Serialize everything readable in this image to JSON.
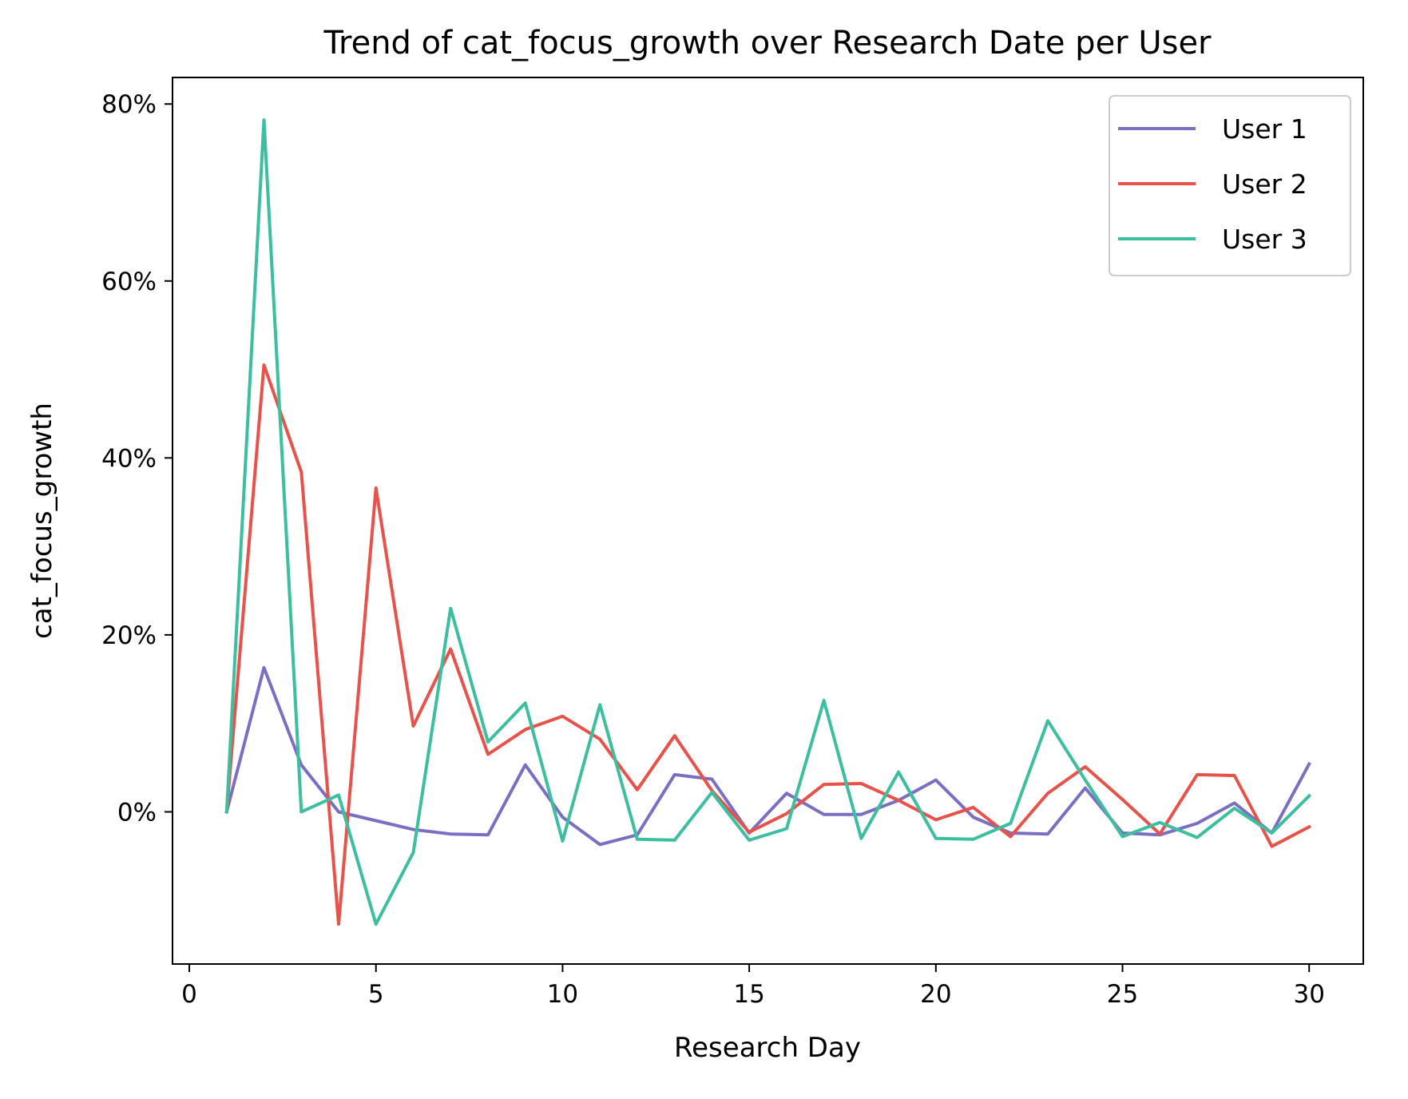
{
  "chart_data": {
    "type": "line",
    "title": "Trend of cat_focus_growth over Research Date per User",
    "xlabel": "Research Day",
    "ylabel": "cat_focus_growth",
    "xlim": [
      -0.45,
      31.45
    ],
    "ylim": [
      -17.2,
      83
    ],
    "x_ticks": [
      0,
      5,
      10,
      15,
      20,
      25,
      30
    ],
    "x_tick_labels": [
      "0",
      "5",
      "10",
      "15",
      "20",
      "25",
      "30"
    ],
    "y_ticks": [
      0,
      20,
      40,
      60,
      80
    ],
    "y_tick_labels": [
      "0%",
      "20%",
      "40%",
      "60%",
      "80%"
    ],
    "grid": false,
    "legend_position": "top-right",
    "x": [
      1,
      2,
      3,
      4,
      5,
      6,
      7,
      8,
      9,
      10,
      11,
      12,
      13,
      14,
      15,
      16,
      17,
      18,
      19,
      20,
      21,
      22,
      23,
      24,
      25,
      26,
      27,
      28,
      29,
      30
    ],
    "series": [
      {
        "name": "User 1",
        "color": "#7b6fc4",
        "values": [
          0,
          16.3,
          5.3,
          0,
          -1,
          -2,
          -2.5,
          -2.6,
          5.3,
          -0.6,
          -3.7,
          -2.6,
          4.2,
          3.7,
          -2.4,
          2.1,
          -0.3,
          -0.3,
          1.3,
          3.6,
          -0.6,
          -2.4,
          -2.5,
          2.7,
          -2.4,
          -2.6,
          -1.3,
          1.0,
          -2.4,
          5.4
        ]
      },
      {
        "name": "User 2",
        "color": "#e8524a",
        "values": [
          0,
          50.5,
          38.4,
          -12.7,
          36.6,
          9.7,
          18.4,
          6.5,
          9.3,
          10.8,
          8.2,
          2.5,
          8.6,
          2.4,
          -2.3,
          -0.2,
          3.1,
          3.2,
          1.3,
          -0.9,
          0.5,
          -2.8,
          2.1,
          5.1,
          1.4,
          -2.5,
          4.2,
          4.1,
          -3.9,
          -1.7
        ]
      },
      {
        "name": "User 3",
        "color": "#3cbf9f",
        "values": [
          0,
          78.2,
          0,
          1.9,
          -12.7,
          -4.6,
          23.0,
          7.9,
          12.3,
          -3.3,
          12.1,
          -3.1,
          -3.2,
          2.2,
          -3.2,
          -1.9,
          12.6,
          -3.0,
          4.5,
          -3.0,
          -3.1,
          -1.3,
          10.3,
          3.6,
          -2.8,
          -1.2,
          -2.9,
          0.4,
          -2.4,
          1.8
        ]
      }
    ]
  }
}
